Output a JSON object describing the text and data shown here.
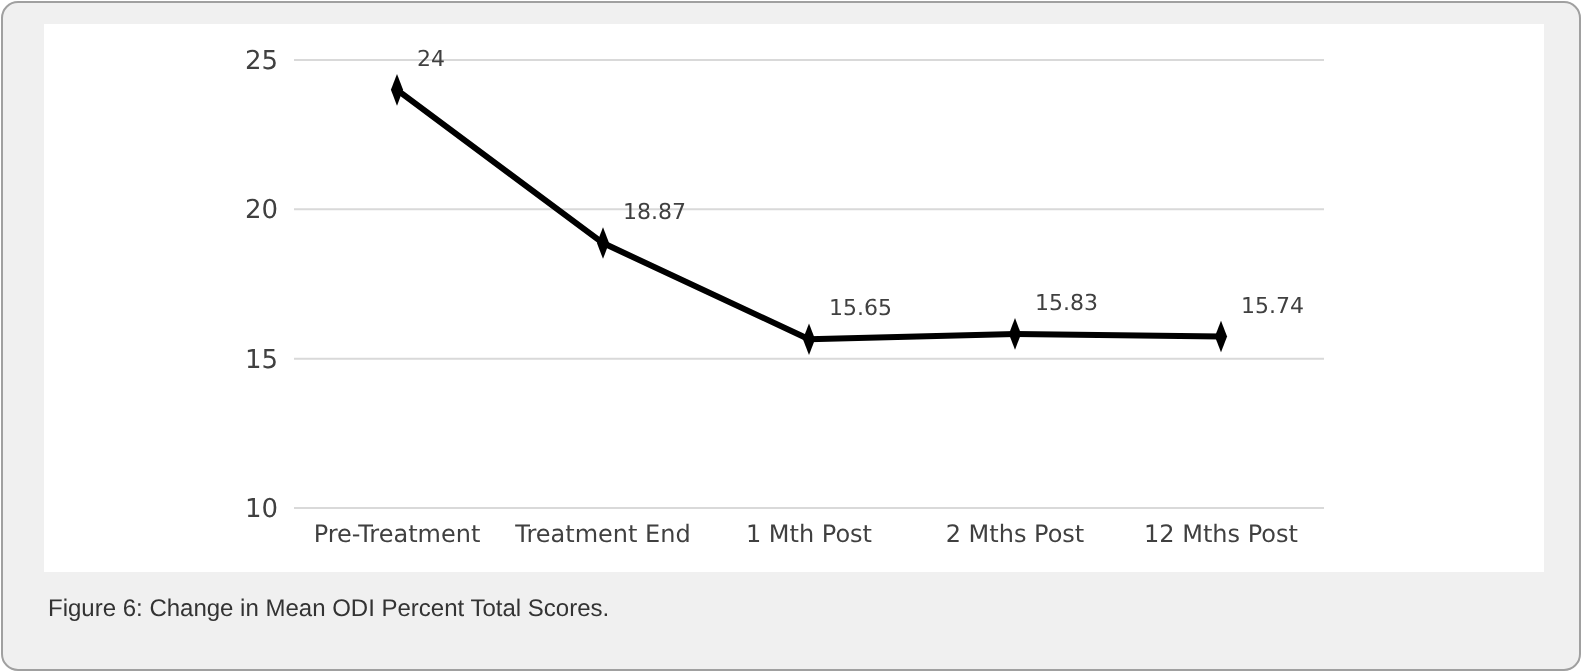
{
  "chart_data": {
    "type": "line",
    "categories": [
      "Pre-Treatment",
      "Treatment End",
      "1 Mth Post",
      "2 Mths Post",
      "12 Mths Post"
    ],
    "series": [
      {
        "color": "#000000",
        "values": [
          24,
          18.87,
          15.65,
          15.83,
          15.74
        ]
      }
    ],
    "ylim": [
      10,
      25
    ],
    "yticks": [
      10,
      15,
      20,
      25
    ],
    "grid": "y",
    "marker": "diamond",
    "line_style": "solid",
    "data_labels": true,
    "annotations": [
      "Figure 6: Change in Mean ODI Percent Total Scores."
    ]
  }
}
